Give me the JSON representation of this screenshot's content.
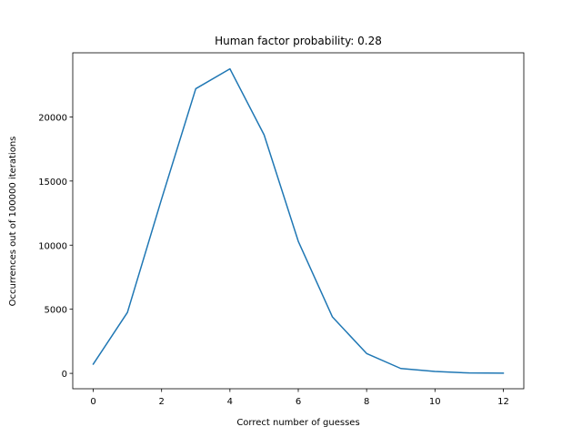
{
  "chart_data": {
    "type": "line",
    "title": "Human factor probability: 0.28",
    "xlabel": "Correct number of guesses",
    "ylabel": "Occurrences out of 100000 iterations",
    "xlim": [
      -0.6,
      12.6
    ],
    "ylim": [
      -1200,
      25000
    ],
    "xticks": [
      0,
      2,
      4,
      6,
      8,
      10,
      12
    ],
    "yticks": [
      0,
      5000,
      10000,
      15000,
      20000
    ],
    "grid": false,
    "series": [
      {
        "color": "#1f77b4",
        "x": [
          0,
          1,
          2,
          3,
          4,
          5,
          6,
          7,
          8,
          9,
          10,
          11,
          12
        ],
        "y": [
          720,
          4750,
          13600,
          22200,
          23750,
          18600,
          10300,
          4400,
          1550,
          380,
          150,
          30,
          20
        ]
      }
    ]
  }
}
